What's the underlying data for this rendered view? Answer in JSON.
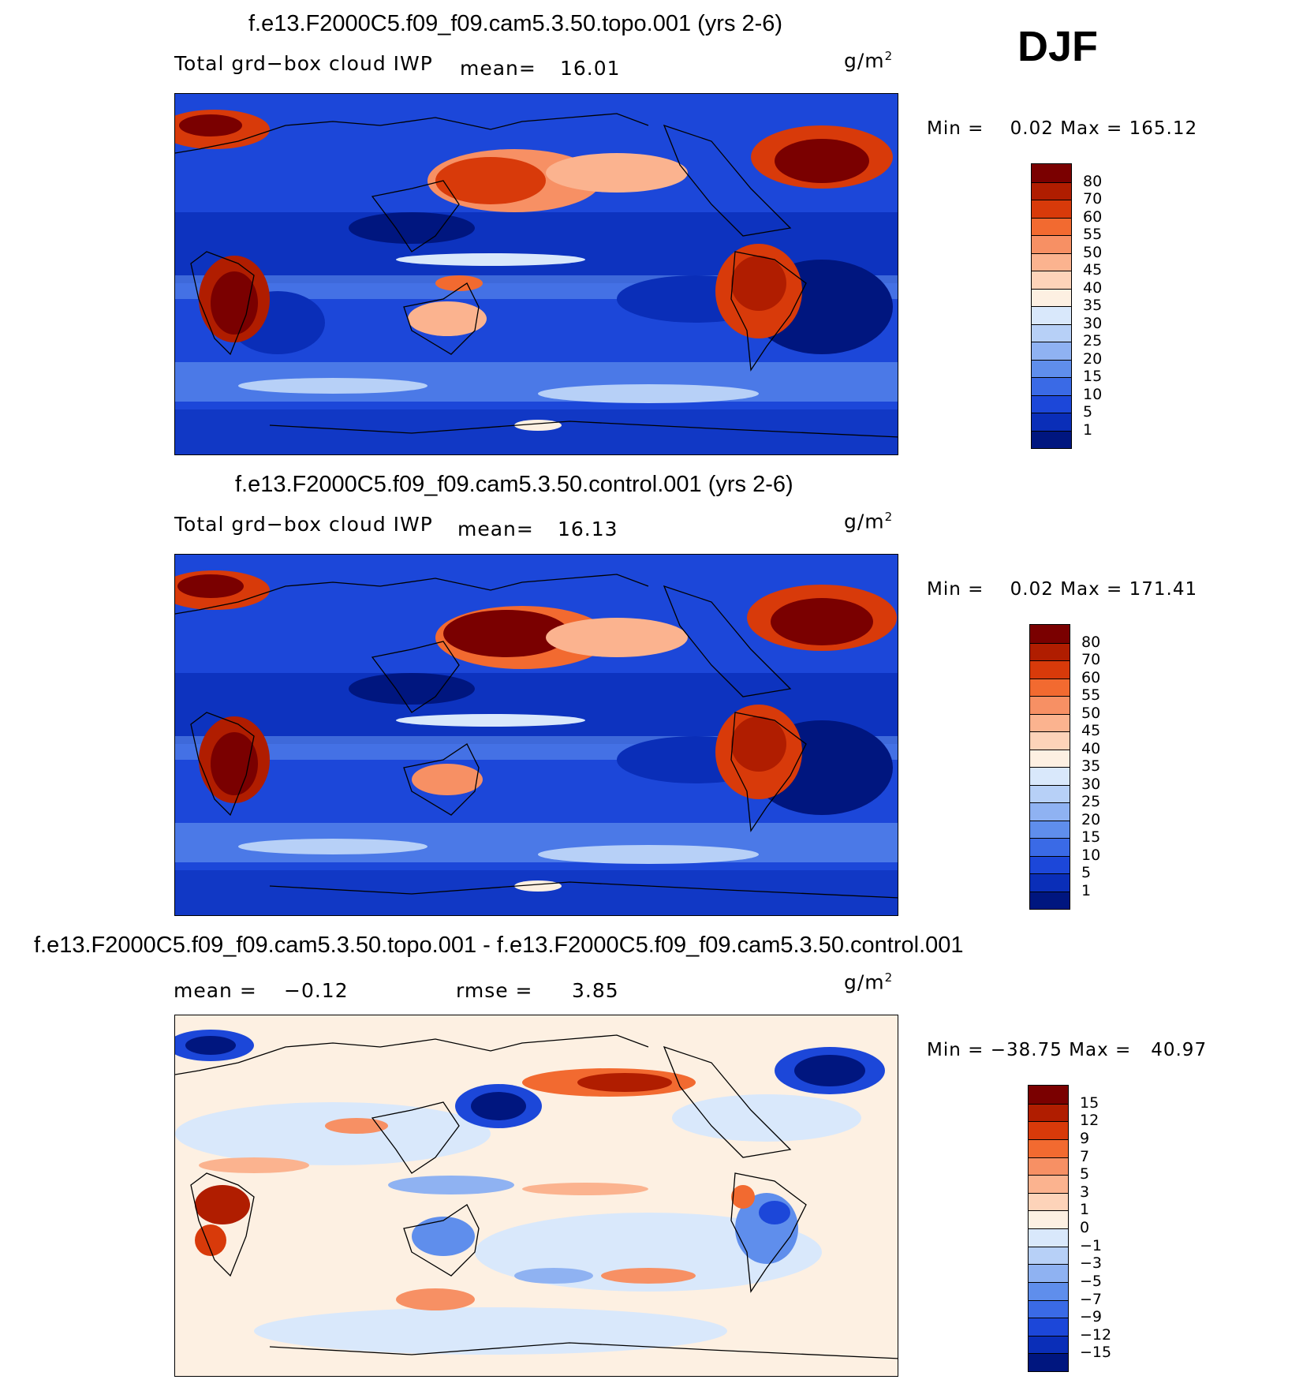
{
  "season": "DJF",
  "panels": [
    {
      "title": "f.e13.F2000C5.f09_f09.cam5.3.50.topo.001 (yrs 2-6)",
      "variable": "Total grd−box cloud IWP",
      "mean_label": "mean=",
      "mean_value": "16.01",
      "units_base": "g/m",
      "units_exp": "2",
      "min_label": "Min =",
      "min_value": "0.02",
      "max_label": "Max =",
      "max_value": "165.12",
      "colorbar_levels": [
        "80",
        "70",
        "60",
        "55",
        "50",
        "45",
        "40",
        "35",
        "30",
        "25",
        "20",
        "15",
        "10",
        "5",
        "1"
      ],
      "colorbar_colors": [
        "#7a0000",
        "#b01d00",
        "#d83a0a",
        "#f26a30",
        "#f79064",
        "#fbb38f",
        "#fdd3b9",
        "#fdf0e2",
        "#d9e8fb",
        "#b7d0f7",
        "#8fb2f2",
        "#5f8eec",
        "#3a6ae6",
        "#1c47d9",
        "#0a2eb8",
        "#00167f"
      ]
    },
    {
      "title": "f.e13.F2000C5.f09_f09.cam5.3.50.control.001 (yrs 2-6)",
      "variable": "Total grd−box cloud IWP",
      "mean_label": "mean=",
      "mean_value": "16.13",
      "units_base": "g/m",
      "units_exp": "2",
      "min_label": "Min =",
      "min_value": "0.02",
      "max_label": "Max =",
      "max_value": "171.41",
      "colorbar_levels": [
        "80",
        "70",
        "60",
        "55",
        "50",
        "45",
        "40",
        "35",
        "30",
        "25",
        "20",
        "15",
        "10",
        "5",
        "1"
      ],
      "colorbar_colors": [
        "#7a0000",
        "#b01d00",
        "#d83a0a",
        "#f26a30",
        "#f79064",
        "#fbb38f",
        "#fdd3b9",
        "#fdf0e2",
        "#d9e8fb",
        "#b7d0f7",
        "#8fb2f2",
        "#5f8eec",
        "#3a6ae6",
        "#1c47d9",
        "#0a2eb8",
        "#00167f"
      ]
    },
    {
      "title": "f.e13.F2000C5.f09_f09.cam5.3.50.topo.001 - f.e13.F2000C5.f09_f09.cam5.3.50.control.001",
      "mean_label": "mean =",
      "mean_value": "−0.12",
      "rmse_label": "rmse =",
      "rmse_value": "3.85",
      "units_base": "g/m",
      "units_exp": "2",
      "min_label": "Min =",
      "min_value": "−38.75",
      "max_label": "Max =",
      "max_value": "40.97",
      "colorbar_levels": [
        "15",
        "12",
        "9",
        "7",
        "5",
        "3",
        "1",
        "0",
        "−1",
        "−3",
        "−5",
        "−7",
        "−9",
        "−12",
        "−15"
      ],
      "colorbar_colors": [
        "#7a0000",
        "#b01d00",
        "#d83a0a",
        "#f26a30",
        "#f79064",
        "#fbb38f",
        "#fdd3b9",
        "#fdf0e2",
        "#d9e8fb",
        "#b7d0f7",
        "#8fb2f2",
        "#5f8eec",
        "#3a6ae6",
        "#1c47d9",
        "#0a2eb8",
        "#00167f"
      ]
    }
  ]
}
